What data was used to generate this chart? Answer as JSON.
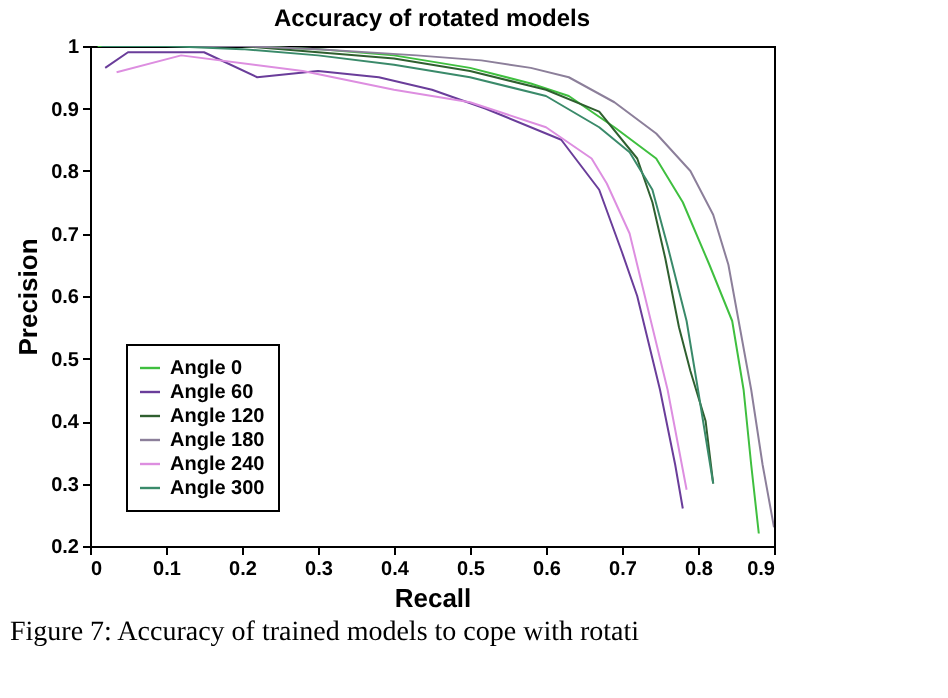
{
  "chart_data": {
    "type": "line",
    "title": "Accuracy of rotated models",
    "xlabel": "Recall",
    "ylabel": "Precision",
    "xlim": [
      0,
      0.9
    ],
    "ylim": [
      0.2,
      1
    ],
    "xticks": [
      0,
      0.1,
      0.2,
      0.3,
      0.4,
      0.5,
      0.6,
      0.7,
      0.8,
      0.9
    ],
    "yticks": [
      0.2,
      0.3,
      0.4,
      0.5,
      0.6,
      0.7,
      0.8,
      0.9,
      1
    ],
    "grid": false,
    "legend": "bottom left",
    "marker": "none",
    "line_style": "solid",
    "annotations": [
      "Figure 7: Accuracy of trained models to cope with rotati"
    ],
    "series": [
      {
        "name": "Angle 0",
        "color": "#3fbf3f",
        "x": [
          0.01,
          0.1,
          0.2,
          0.3,
          0.4,
          0.5,
          0.58,
          0.63,
          0.69,
          0.745,
          0.78,
          0.815,
          0.845,
          0.86,
          0.87,
          0.88
        ],
        "values": [
          1,
          1,
          1,
          0.995,
          0.985,
          0.965,
          0.94,
          0.92,
          0.87,
          0.82,
          0.75,
          0.65,
          0.56,
          0.45,
          0.33,
          0.22
        ]
      },
      {
        "name": "Angle 60",
        "color": "#6a3d9a",
        "x": [
          0.02,
          0.05,
          0.15,
          0.22,
          0.3,
          0.38,
          0.45,
          0.52,
          0.62,
          0.67,
          0.7,
          0.72,
          0.75,
          0.77,
          0.78
        ],
        "values": [
          0.965,
          0.99,
          0.99,
          0.95,
          0.96,
          0.95,
          0.93,
          0.9,
          0.85,
          0.77,
          0.67,
          0.6,
          0.45,
          0.33,
          0.26
        ]
      },
      {
        "name": "Angle 120",
        "color": "#2f5f2f",
        "x": [
          0.02,
          0.1,
          0.2,
          0.3,
          0.4,
          0.5,
          0.6,
          0.67,
          0.72,
          0.74,
          0.757,
          0.775,
          0.79,
          0.81,
          0.82
        ],
        "values": [
          1,
          1,
          1,
          0.99,
          0.98,
          0.96,
          0.93,
          0.895,
          0.82,
          0.75,
          0.66,
          0.55,
          0.48,
          0.4,
          0.3
        ]
      },
      {
        "name": "Angle 180",
        "color": "#8c7f9a",
        "x": [
          0.02,
          0.1,
          0.2,
          0.3,
          0.43,
          0.515,
          0.58,
          0.63,
          0.69,
          0.745,
          0.79,
          0.82,
          0.84,
          0.855,
          0.87,
          0.885,
          0.9
        ],
        "values": [
          1,
          1,
          1,
          0.995,
          0.985,
          0.977,
          0.965,
          0.95,
          0.91,
          0.86,
          0.8,
          0.73,
          0.65,
          0.55,
          0.45,
          0.33,
          0.23
        ]
      },
      {
        "name": "Angle 240",
        "color": "#dd8ee0",
        "x": [
          0.035,
          0.12,
          0.28,
          0.4,
          0.5,
          0.6,
          0.66,
          0.68,
          0.71,
          0.73,
          0.76,
          0.785
        ],
        "values": [
          0.958,
          0.985,
          0.96,
          0.93,
          0.91,
          0.87,
          0.82,
          0.78,
          0.7,
          0.6,
          0.45,
          0.29
        ]
      },
      {
        "name": "Angle 300",
        "color": "#3a8a6a",
        "x": [
          0.015,
          0.1,
          0.2,
          0.3,
          0.4,
          0.5,
          0.6,
          0.67,
          0.71,
          0.74,
          0.76,
          0.785,
          0.8,
          0.82
        ],
        "values": [
          1,
          1,
          0.995,
          0.985,
          0.97,
          0.95,
          0.92,
          0.87,
          0.83,
          0.77,
          0.68,
          0.56,
          0.45,
          0.3
        ]
      }
    ]
  }
}
